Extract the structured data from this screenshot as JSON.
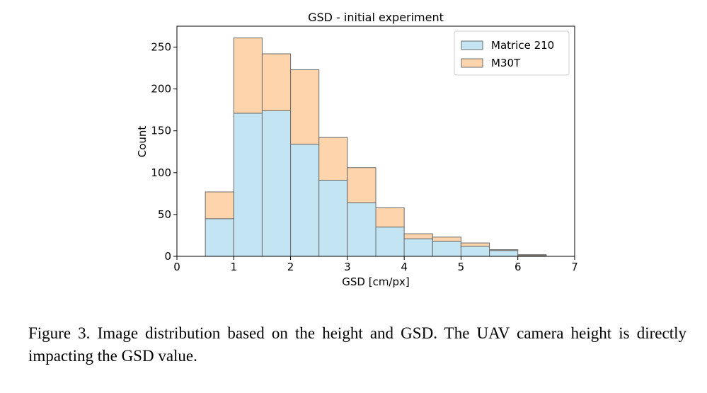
{
  "chart_data": {
    "type": "bar",
    "stacked": true,
    "title": "GSD - initial experiment",
    "xlabel": "GSD [cm/px]",
    "ylabel": "Count",
    "xlim": [
      0,
      7
    ],
    "ylim": [
      0,
      275
    ],
    "xticks": [
      0,
      1,
      2,
      3,
      4,
      5,
      6,
      7
    ],
    "yticks": [
      0,
      50,
      100,
      150,
      200,
      250
    ],
    "bin_edges": [
      0.5,
      1.0,
      1.5,
      2.0,
      2.5,
      3.0,
      3.5,
      4.0,
      4.5,
      5.0,
      5.5,
      6.0,
      6.5
    ],
    "series": [
      {
        "name": "Matrice 210",
        "color": "#c2e4f3",
        "values": [
          45,
          171,
          174,
          134,
          91,
          64,
          35,
          21,
          18,
          12,
          7,
          1
        ]
      },
      {
        "name": "M30T",
        "color": "#fdd4ab",
        "values": [
          32,
          90,
          68,
          89,
          51,
          42,
          23,
          6,
          5,
          4,
          1,
          1
        ]
      }
    ],
    "legend_position": "top-right",
    "edge_color": "#6b6b6b"
  },
  "caption": "Figure 3. Image distribution based on the height and GSD. The UAV camera height is directly impacting the GSD value."
}
